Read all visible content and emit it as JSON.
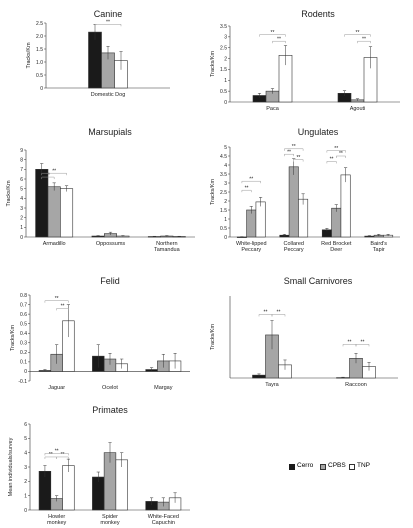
{
  "colors": {
    "cerro": "#1a1a1a",
    "cpbs": "#a6a6a6",
    "tnp": "#ffffff",
    "stroke": "#333333",
    "sig": "#999999"
  },
  "legend": {
    "items": [
      "Cerro",
      "CPBS",
      "TNP"
    ]
  },
  "chart_data": [
    {
      "type": "bar",
      "title": "Canine",
      "ylabel": "Tracks/Km",
      "ylim": [
        0,
        2.5
      ],
      "yticks": [
        "0",
        "0.5",
        "1.0",
        "1.5",
        "2.0",
        "2.5"
      ],
      "categories": [
        [
          "Domestic Dog"
        ]
      ],
      "series": [
        {
          "name": "Cerro",
          "values": [
            2.15
          ],
          "errors": [
            0.3
          ]
        },
        {
          "name": "CPBS",
          "values": [
            1.35
          ],
          "errors": [
            0.25
          ]
        },
        {
          "name": "TNP",
          "values": [
            1.05
          ],
          "errors": [
            0.35
          ]
        }
      ],
      "significance": [
        [
          0,
          0,
          2,
          2.45
        ]
      ]
    },
    {
      "type": "bar",
      "title": "Rodents",
      "ylabel": "Tracks/Km",
      "ylim": [
        0,
        3.5
      ],
      "yticks": [
        "0",
        "0.5",
        "1",
        "1.5",
        "2",
        "2.5",
        "3",
        "3.5"
      ],
      "categories": [
        [
          "Paca"
        ],
        [
          "Agouti"
        ]
      ],
      "series": [
        {
          "name": "Cerro",
          "values": [
            0.3,
            0.4
          ],
          "errors": [
            0.1,
            0.12
          ]
        },
        {
          "name": "CPBS",
          "values": [
            0.5,
            0.1
          ],
          "errors": [
            0.12,
            0.05
          ]
        },
        {
          "name": "TNP",
          "values": [
            2.15,
            2.05
          ],
          "errors": [
            0.45,
            0.5
          ]
        }
      ],
      "significance": [
        [
          0,
          0,
          2,
          3.1
        ],
        [
          0,
          1,
          2,
          2.8
        ],
        [
          1,
          0,
          2,
          3.1
        ],
        [
          1,
          1,
          2,
          2.8
        ]
      ]
    },
    {
      "type": "bar",
      "title": "Marsupials",
      "ylabel": "Tracks/Km",
      "ylim": [
        0,
        9
      ],
      "yticks": [
        "0",
        "1",
        "2",
        "3",
        "4",
        "5",
        "6",
        "7",
        "8",
        "9"
      ],
      "categories": [
        [
          "Armadillo"
        ],
        [
          "Oppossums"
        ],
        [
          "Northern",
          "Tamandua"
        ]
      ],
      "series": [
        {
          "name": "Cerro",
          "values": [
            7.0,
            0.1,
            0.05
          ],
          "errors": [
            0.6,
            0.05,
            0.03
          ]
        },
        {
          "name": "CPBS",
          "values": [
            5.2,
            0.35,
            0.1
          ],
          "errors": [
            0.4,
            0.15,
            0.05
          ]
        },
        {
          "name": "TNP",
          "values": [
            5.0,
            0.1,
            0.05
          ],
          "errors": [
            0.3,
            0.05,
            0.03
          ]
        }
      ],
      "significance": [
        [
          0,
          0,
          1,
          6.2
        ],
        [
          0,
          0,
          2,
          6.6
        ]
      ]
    },
    {
      "type": "bar",
      "title": "Ungulates",
      "ylabel": "Tracks/Km",
      "ylim": [
        0,
        5
      ],
      "yticks": [
        "0",
        "0.5",
        "1",
        "1.5",
        "2",
        "2.5",
        "3",
        "3.5",
        "4",
        "4.5",
        "5"
      ],
      "categories": [
        [
          "White-lipped",
          "Peccary"
        ],
        [
          "Collared",
          "Peccary"
        ],
        [
          "Red Brocket",
          "Deer"
        ],
        [
          "Baird's",
          "Tapir"
        ]
      ],
      "series": [
        {
          "name": "Cerro",
          "values": [
            0.0,
            0.1,
            0.4,
            0.05
          ],
          "errors": [
            0.02,
            0.05,
            0.08,
            0.03
          ]
        },
        {
          "name": "CPBS",
          "values": [
            1.5,
            3.9,
            1.6,
            0.1
          ],
          "errors": [
            0.2,
            0.45,
            0.2,
            0.05
          ]
        },
        {
          "name": "TNP",
          "values": [
            1.95,
            2.1,
            3.45,
            0.1
          ],
          "errors": [
            0.25,
            0.3,
            0.4,
            0.05
          ]
        }
      ],
      "significance": [
        [
          0,
          0,
          1,
          2.6
        ],
        [
          0,
          0,
          2,
          3.1
        ],
        [
          1,
          0,
          1,
          4.6
        ],
        [
          1,
          1,
          2,
          4.3
        ],
        [
          1,
          0,
          2,
          4.9
        ],
        [
          2,
          0,
          1,
          4.2
        ],
        [
          2,
          1,
          2,
          4.5
        ],
        [
          2,
          0,
          2,
          4.8
        ]
      ]
    },
    {
      "type": "bar",
      "title": "Felid",
      "ylabel": "Tracks/Km",
      "ylim": [
        -0.1,
        0.8
      ],
      "yticks": [
        "-0.1",
        "0",
        "0.1",
        "0.2",
        "0.3",
        "0.4",
        "0.5",
        "0.6",
        "0.7",
        "0.8"
      ],
      "categories": [
        [
          "Jaguar"
        ],
        [
          "Ocelot"
        ],
        [
          "Margay"
        ]
      ],
      "series": [
        {
          "name": "Cerro",
          "values": [
            0.01,
            0.16,
            0.02
          ],
          "errors": [
            0.01,
            0.12,
            0.02
          ]
        },
        {
          "name": "CPBS",
          "values": [
            0.18,
            0.13,
            0.11
          ],
          "errors": [
            0.1,
            0.06,
            0.07
          ]
        },
        {
          "name": "TNP",
          "values": [
            0.53,
            0.08,
            0.11
          ],
          "errors": [
            0.17,
            0.05,
            0.08
          ]
        }
      ],
      "significance": [
        [
          0,
          0,
          2,
          0.74
        ],
        [
          0,
          1,
          2,
          0.66
        ]
      ]
    },
    {
      "type": "bar",
      "title": "Small Carnivores",
      "ylabel": "Tracks/Km",
      "ylim": [
        0,
        2
      ],
      "yticks": [],
      "categories": [
        [
          "Tayra"
        ],
        [
          "Raccoon"
        ]
      ],
      "series": [
        {
          "name": "Cerro",
          "values": [
            0.07,
            0.01
          ],
          "errors": [
            0.03,
            0.01
          ]
        },
        {
          "name": "CPBS",
          "values": [
            1.05,
            0.48
          ],
          "errors": [
            0.35,
            0.12
          ]
        },
        {
          "name": "TNP",
          "values": [
            0.32,
            0.28
          ],
          "errors": [
            0.12,
            0.1
          ]
        }
      ],
      "significance": [
        [
          0,
          0,
          1,
          1.55
        ],
        [
          0,
          1,
          2,
          1.55
        ],
        [
          1,
          0,
          1,
          0.82
        ],
        [
          1,
          1,
          2,
          0.82
        ]
      ]
    },
    {
      "type": "bar",
      "title": "Primates",
      "ylabel": "Mean individuals/survey",
      "ylim": [
        0,
        6
      ],
      "yticks": [
        "0",
        "1",
        "2",
        "3",
        "4",
        "5",
        "6"
      ],
      "categories": [
        [
          "Howler",
          "monkey"
        ],
        [
          "Spider",
          "monkey"
        ],
        [
          "White-Faced",
          "Capuchin"
        ]
      ],
      "series": [
        {
          "name": "Cerro",
          "values": [
            2.7,
            2.3,
            0.6
          ],
          "errors": [
            0.4,
            0.35,
            0.25
          ]
        },
        {
          "name": "CPBS",
          "values": [
            0.8,
            4.0,
            0.55
          ],
          "errors": [
            0.2,
            0.7,
            0.3
          ]
        },
        {
          "name": "TNP",
          "values": [
            3.1,
            3.5,
            0.85
          ],
          "errors": [
            0.45,
            0.5,
            0.35
          ]
        }
      ],
      "significance": [
        [
          0,
          0,
          1,
          3.7
        ],
        [
          0,
          1,
          2,
          3.7
        ],
        [
          0,
          0,
          2,
          3.95
        ]
      ]
    }
  ]
}
